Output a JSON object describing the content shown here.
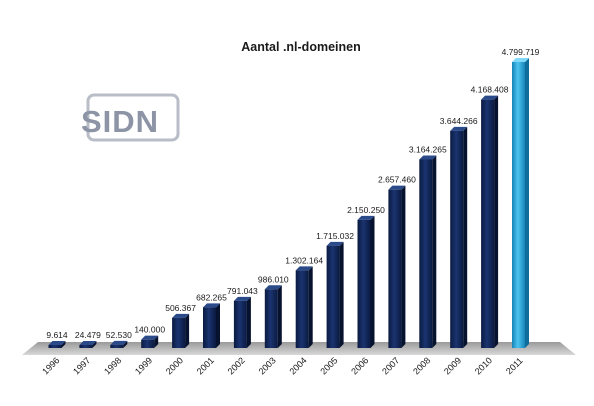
{
  "logo": {
    "text": "SIDN"
  },
  "chart_data": {
    "type": "bar",
    "title": "Aantal .nl-domeinen",
    "categories": [
      "1996",
      "1997",
      "1998",
      "1999",
      "2000",
      "2001",
      "2002",
      "2003",
      "2004",
      "2005",
      "2006",
      "2007",
      "2008",
      "2009",
      "2010",
      "2011"
    ],
    "values": [
      9614,
      24479,
      52530,
      140000,
      506367,
      682265,
      791043,
      986010,
      1302164,
      1715032,
      2150250,
      2657460,
      3164265,
      3644266,
      4168408,
      4799719
    ],
    "labels": [
      "9.614",
      "24.479",
      "52.530",
      "140.000",
      "506.367",
      "682.265",
      "791.043",
      "986.010",
      "1.302.164",
      "1.715.032",
      "2.150.250",
      "2.657.460",
      "3.164.265",
      "3.644.266",
      "4.168.408",
      "4.799.719"
    ],
    "xlabel": "",
    "ylabel": "",
    "ylim": [
      0,
      4800000
    ],
    "grid": false,
    "legend": "none",
    "colors": {
      "bar": "#0f2454",
      "highlight": "#1ea3dc",
      "floor": "#c8c8c8"
    },
    "highlight_index": 15
  }
}
